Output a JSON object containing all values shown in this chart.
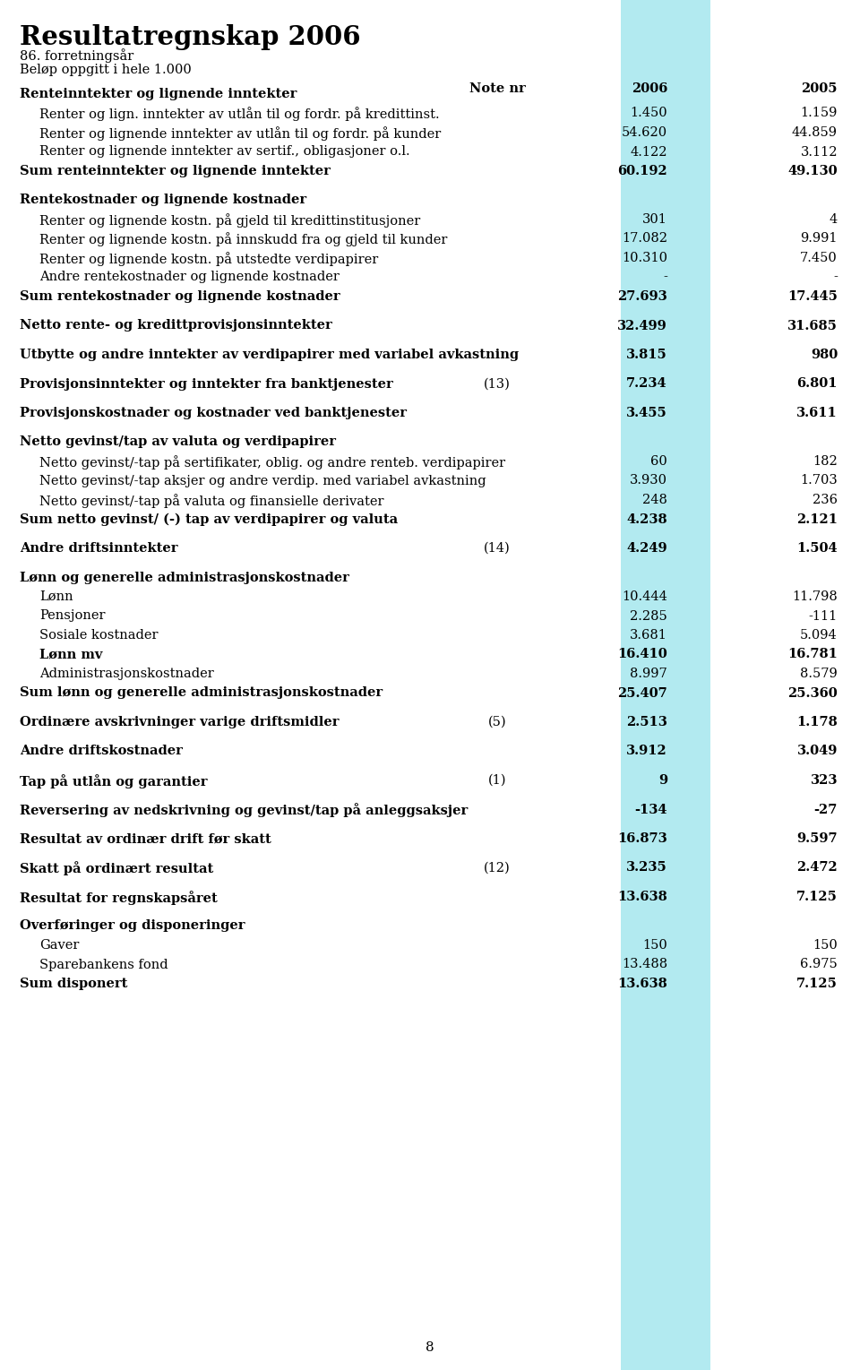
{
  "title": "Resultatregnskap 2006",
  "subtitle1": "86. forretningsår",
  "subtitle2": "Beløp oppgitt i hele 1.000",
  "highlight_col_color": "#b2eaf0",
  "page_number": "8",
  "rows": [
    {
      "text": "Renteinntekter og lignende inntekter",
      "note": "",
      "v2006": "",
      "v2005": "",
      "style": "section_header",
      "indent": 0,
      "space_before": 0
    },
    {
      "text": "Renter og lign. inntekter av utlån til og fordr. på kredittinst.",
      "note": "",
      "v2006": "1.450",
      "v2005": "1.159",
      "style": "normal",
      "indent": 1,
      "space_before": 0
    },
    {
      "text": "Renter og lignende inntekter av utlån til og fordr. på kunder",
      "note": "",
      "v2006": "54.620",
      "v2005": "44.859",
      "style": "normal",
      "indent": 1,
      "space_before": 0
    },
    {
      "text": "Renter og lignende inntekter av sertif., obligasjoner o.l.",
      "note": "",
      "v2006": "4.122",
      "v2005": "3.112",
      "style": "normal",
      "indent": 1,
      "space_before": 0
    },
    {
      "text": "Sum renteinntekter og lignende inntekter",
      "note": "",
      "v2006": "60.192",
      "v2005": "49.130",
      "style": "sum_bold",
      "indent": 0,
      "space_before": 0
    },
    {
      "text": "",
      "note": "",
      "v2006": "",
      "v2005": "",
      "style": "spacer",
      "indent": 0,
      "space_before": 0
    },
    {
      "text": "Rentekostnader og lignende kostnader",
      "note": "",
      "v2006": "",
      "v2005": "",
      "style": "section_header",
      "indent": 0,
      "space_before": 0
    },
    {
      "text": "Renter og lignende kostn. på gjeld til kredittinstitusjoner",
      "note": "",
      "v2006": "301",
      "v2005": "4",
      "style": "normal",
      "indent": 1,
      "space_before": 0
    },
    {
      "text": "Renter og lignende kostn. på innskudd fra og gjeld til kunder",
      "note": "",
      "v2006": "17.082",
      "v2005": "9.991",
      "style": "normal",
      "indent": 1,
      "space_before": 0
    },
    {
      "text": "Renter og lignende kostn. på utstedte verdipapirer",
      "note": "",
      "v2006": "10.310",
      "v2005": "7.450",
      "style": "normal",
      "indent": 1,
      "space_before": 0
    },
    {
      "text": "Andre rentekostnader og lignende kostnader",
      "note": "",
      "v2006": "-",
      "v2005": "-",
      "style": "normal",
      "indent": 1,
      "space_before": 0
    },
    {
      "text": "Sum rentekostnader og lignende kostnader",
      "note": "",
      "v2006": "27.693",
      "v2005": "17.445",
      "style": "sum_bold",
      "indent": 0,
      "space_before": 0
    },
    {
      "text": "",
      "note": "",
      "v2006": "",
      "v2005": "",
      "style": "spacer",
      "indent": 0,
      "space_before": 0
    },
    {
      "text": "Netto rente- og kredittprovisjonsinntekter",
      "note": "",
      "v2006": "32.499",
      "v2005": "31.685",
      "style": "bold_row",
      "indent": 0,
      "space_before": 0
    },
    {
      "text": "",
      "note": "",
      "v2006": "",
      "v2005": "",
      "style": "spacer",
      "indent": 0,
      "space_before": 0
    },
    {
      "text": "Utbytte og andre inntekter av verdipapirer med variabel avkastning",
      "note": "",
      "v2006": "3.815",
      "v2005": "980",
      "style": "bold_row",
      "indent": 0,
      "space_before": 0
    },
    {
      "text": "",
      "note": "",
      "v2006": "",
      "v2005": "",
      "style": "spacer",
      "indent": 0,
      "space_before": 0
    },
    {
      "text": "Provisjonsinntekter og inntekter fra banktjenester",
      "note": "(13)",
      "v2006": "7.234",
      "v2005": "6.801",
      "style": "bold_row",
      "indent": 0,
      "space_before": 0
    },
    {
      "text": "",
      "note": "",
      "v2006": "",
      "v2005": "",
      "style": "spacer",
      "indent": 0,
      "space_before": 0
    },
    {
      "text": "Provisjonskostnader og kostnader ved banktjenester",
      "note": "",
      "v2006": "3.455",
      "v2005": "3.611",
      "style": "bold_row",
      "indent": 0,
      "space_before": 0
    },
    {
      "text": "",
      "note": "",
      "v2006": "",
      "v2005": "",
      "style": "spacer",
      "indent": 0,
      "space_before": 0
    },
    {
      "text": "Netto gevinst/tap av valuta og verdipapirer",
      "note": "",
      "v2006": "",
      "v2005": "",
      "style": "section_header",
      "indent": 0,
      "space_before": 0
    },
    {
      "text": "Netto gevinst/-tap på sertifikater, oblig. og andre renteb. verdipapirer",
      "note": "",
      "v2006": "60",
      "v2005": "182",
      "style": "normal",
      "indent": 1,
      "space_before": 0
    },
    {
      "text": "Netto gevinst/-tap aksjer og andre verdip. med variabel avkastning",
      "note": "",
      "v2006": "3.930",
      "v2005": "1.703",
      "style": "normal",
      "indent": 1,
      "space_before": 0
    },
    {
      "text": "Netto gevinst/-tap på valuta og finansielle derivater",
      "note": "",
      "v2006": "248",
      "v2005": "236",
      "style": "normal",
      "indent": 1,
      "space_before": 0
    },
    {
      "text": "Sum netto gevinst/ (-) tap av verdipapirer og valuta",
      "note": "",
      "v2006": "4.238",
      "v2005": "2.121",
      "style": "sum_bold",
      "indent": 0,
      "space_before": 0
    },
    {
      "text": "",
      "note": "",
      "v2006": "",
      "v2005": "",
      "style": "spacer",
      "indent": 0,
      "space_before": 0
    },
    {
      "text": "Andre driftsinntekter",
      "note": "(14)",
      "v2006": "4.249",
      "v2005": "1.504",
      "style": "bold_row",
      "indent": 0,
      "space_before": 0
    },
    {
      "text": "",
      "note": "",
      "v2006": "",
      "v2005": "",
      "style": "spacer",
      "indent": 0,
      "space_before": 0
    },
    {
      "text": "Lønn og generelle administrasjonskostnader",
      "note": "",
      "v2006": "",
      "v2005": "",
      "style": "section_header",
      "indent": 0,
      "space_before": 0
    },
    {
      "text": "Lønn",
      "note": "",
      "v2006": "10.444",
      "v2005": "11.798",
      "style": "normal",
      "indent": 1,
      "space_before": 0
    },
    {
      "text": "Pensjoner",
      "note": "",
      "v2006": "2.285",
      "v2005": "-111",
      "style": "normal",
      "indent": 1,
      "space_before": 0
    },
    {
      "text": "Sosiale kostnader",
      "note": "",
      "v2006": "3.681",
      "v2005": "5.094",
      "style": "normal",
      "indent": 1,
      "space_before": 0
    },
    {
      "text": "Lønn mv",
      "note": "",
      "v2006": "16.410",
      "v2005": "16.781",
      "style": "sub_bold",
      "indent": 1,
      "space_before": 0
    },
    {
      "text": "Administrasjonskostnader",
      "note": "",
      "v2006": "8.997",
      "v2005": "8.579",
      "style": "normal",
      "indent": 1,
      "space_before": 0
    },
    {
      "text": "Sum lønn og generelle administrasjonskostnader",
      "note": "",
      "v2006": "25.407",
      "v2005": "25.360",
      "style": "sum_bold",
      "indent": 0,
      "space_before": 0
    },
    {
      "text": "",
      "note": "",
      "v2006": "",
      "v2005": "",
      "style": "spacer",
      "indent": 0,
      "space_before": 0
    },
    {
      "text": "Ordinære avskrivninger varige driftsmidler",
      "note": "(5)",
      "v2006": "2.513",
      "v2005": "1.178",
      "style": "bold_row",
      "indent": 0,
      "space_before": 0
    },
    {
      "text": "",
      "note": "",
      "v2006": "",
      "v2005": "",
      "style": "spacer",
      "indent": 0,
      "space_before": 0
    },
    {
      "text": "Andre driftskostnader",
      "note": "",
      "v2006": "3.912",
      "v2005": "3.049",
      "style": "bold_row",
      "indent": 0,
      "space_before": 0
    },
    {
      "text": "",
      "note": "",
      "v2006": "",
      "v2005": "",
      "style": "spacer",
      "indent": 0,
      "space_before": 0
    },
    {
      "text": "Tap på utlån og garantier",
      "note": "(1)",
      "v2006": "9",
      "v2005": "323",
      "style": "bold_row",
      "indent": 0,
      "space_before": 0
    },
    {
      "text": "",
      "note": "",
      "v2006": "",
      "v2005": "",
      "style": "spacer",
      "indent": 0,
      "space_before": 0
    },
    {
      "text": "Reversering av nedskrivning og gevinst/tap på anleggsaksjer",
      "note": "",
      "v2006": "-134",
      "v2005": "-27",
      "style": "bold_row",
      "indent": 0,
      "space_before": 0
    },
    {
      "text": "",
      "note": "",
      "v2006": "",
      "v2005": "",
      "style": "spacer",
      "indent": 0,
      "space_before": 0
    },
    {
      "text": "Resultat av ordinær drift før skatt",
      "note": "",
      "v2006": "16.873",
      "v2005": "9.597",
      "style": "bold_row",
      "indent": 0,
      "space_before": 0
    },
    {
      "text": "",
      "note": "",
      "v2006": "",
      "v2005": "",
      "style": "spacer",
      "indent": 0,
      "space_before": 0
    },
    {
      "text": "Skatt på ordinært resultat",
      "note": "(12)",
      "v2006": "3.235",
      "v2005": "2.472",
      "style": "bold_row",
      "indent": 0,
      "space_before": 0
    },
    {
      "text": "",
      "note": "",
      "v2006": "",
      "v2005": "",
      "style": "spacer",
      "indent": 0,
      "space_before": 0
    },
    {
      "text": "Resultat for regnskapsåret",
      "note": "",
      "v2006": "13.638",
      "v2005": "7.125",
      "style": "bold_row",
      "indent": 0,
      "space_before": 0
    },
    {
      "text": "",
      "note": "",
      "v2006": "",
      "v2005": "",
      "style": "spacer",
      "indent": 0,
      "space_before": 0
    },
    {
      "text": "Overføringer og disponeringer",
      "note": "",
      "v2006": "",
      "v2005": "",
      "style": "section_header",
      "indent": 0,
      "space_before": 0
    },
    {
      "text": "Gaver",
      "note": "",
      "v2006": "150",
      "v2005": "150",
      "style": "normal",
      "indent": 1,
      "space_before": 0
    },
    {
      "text": "Sparebankens fond",
      "note": "",
      "v2006": "13.488",
      "v2005": "6.975",
      "style": "normal",
      "indent": 1,
      "space_before": 0
    },
    {
      "text": "Sum disponert",
      "note": "",
      "v2006": "13.638",
      "v2005": "7.125",
      "style": "sum_bold",
      "indent": 0,
      "space_before": 0
    }
  ]
}
